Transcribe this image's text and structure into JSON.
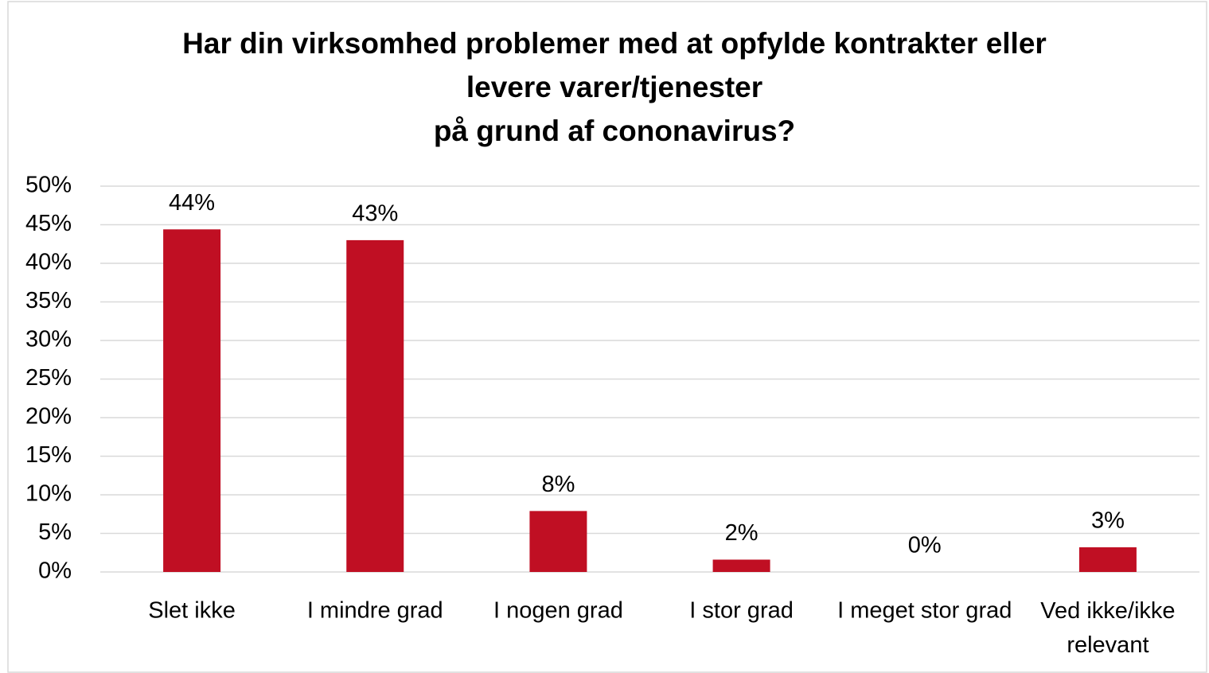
{
  "chart_data": {
    "type": "bar",
    "title": [
      "Har din virksomhed problemer med at opfylde kontrakter eller",
      "levere varer/tjenester",
      "på grund af cononavirus?"
    ],
    "categories": [
      "Slet ikke",
      "I mindre grad",
      "I nogen grad",
      "I stor grad",
      "I meget stor grad",
      "Ved ikke/ikke relevant"
    ],
    "values": [
      44.4,
      43.0,
      7.9,
      1.6,
      0,
      3.2
    ],
    "value_labels": [
      "44%",
      "43%",
      "8%",
      "2%",
      "0%",
      "3%"
    ],
    "color": "#c00f23",
    "ylim": [
      0,
      50
    ],
    "yticks": [
      {
        "value": 0,
        "label": "0%"
      },
      {
        "value": 5,
        "label": "5%"
      },
      {
        "value": 10,
        "label": "10%"
      },
      {
        "value": 15,
        "label": "15%"
      },
      {
        "value": 20,
        "label": "20%"
      },
      {
        "value": 25,
        "label": "25%"
      },
      {
        "value": 30,
        "label": "30%"
      },
      {
        "value": 35,
        "label": "35%"
      },
      {
        "value": 40,
        "label": "40%"
      },
      {
        "value": 45,
        "label": "45%"
      },
      {
        "value": 50,
        "label": "50%"
      }
    ],
    "grid": true
  }
}
